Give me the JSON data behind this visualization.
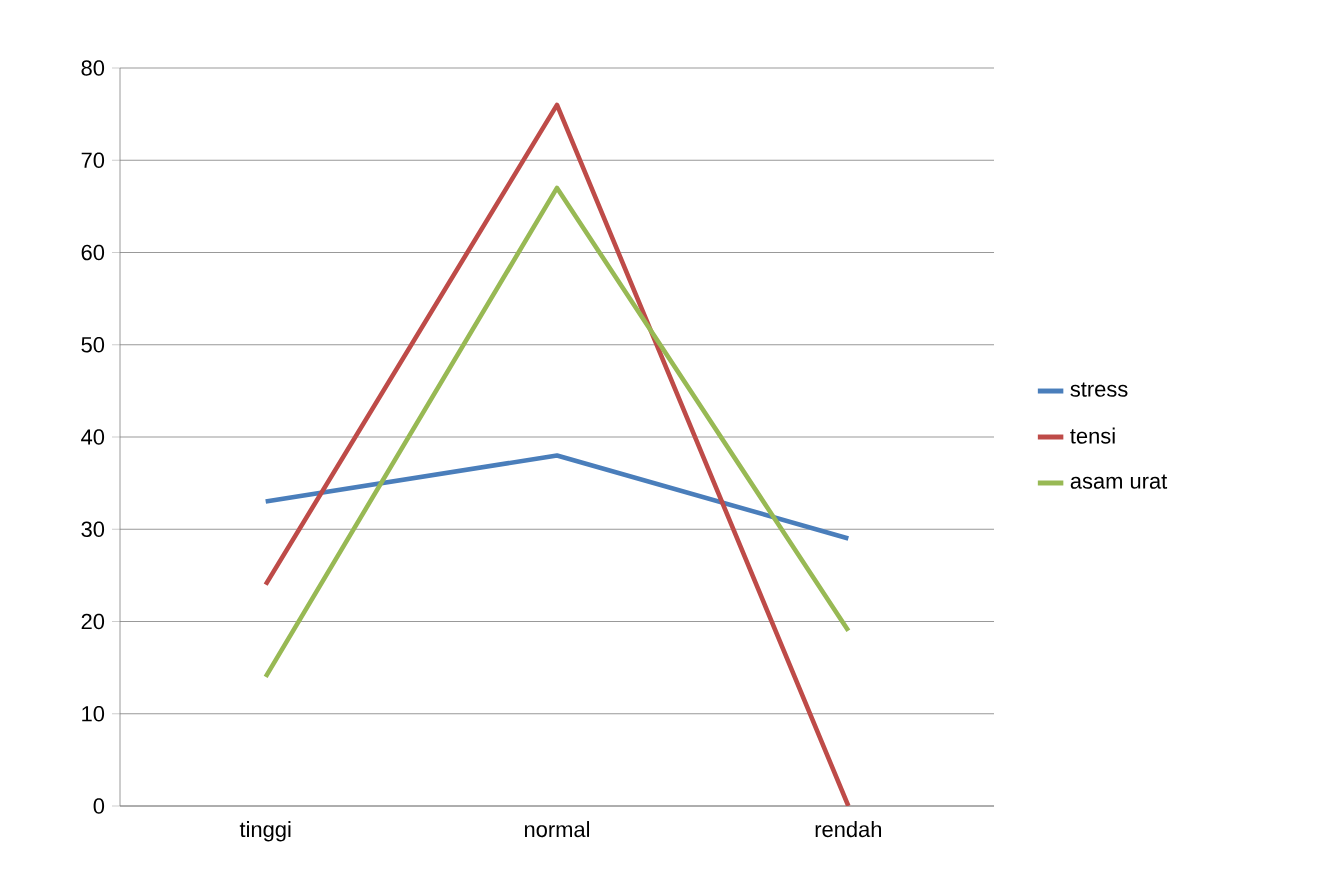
{
  "chart_data": {
    "type": "line",
    "categories": [
      "tinggi",
      "normal",
      "rendah"
    ],
    "series": [
      {
        "name": "stress",
        "color": "#4a7ebb",
        "values": [
          33,
          38,
          29
        ]
      },
      {
        "name": "tensi",
        "color": "#be4b48",
        "values": [
          24,
          76,
          0
        ]
      },
      {
        "name": "asam urat",
        "color": "#98b954",
        "values": [
          14,
          67,
          19
        ]
      }
    ],
    "ylim": [
      0,
      80
    ],
    "yticks": [
      0,
      10,
      20,
      30,
      40,
      50,
      60,
      70,
      80
    ],
    "grid": "y",
    "legend": "right",
    "marker": "none",
    "line_style": "solid"
  }
}
